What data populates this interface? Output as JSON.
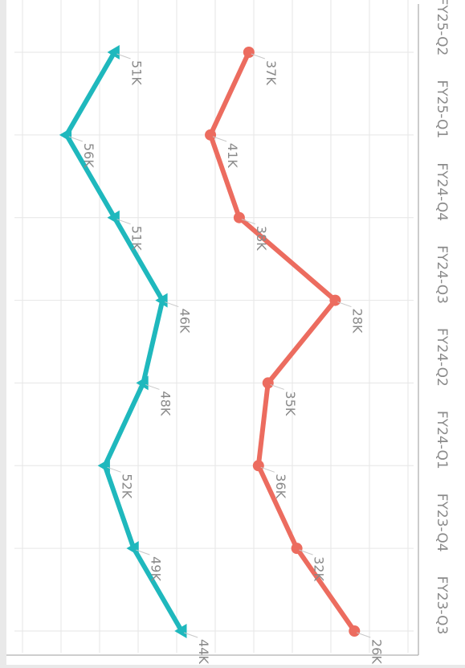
{
  "chart_data": {
    "type": "line",
    "orientation": "rotated-90-clockwise",
    "categories": [
      "FY23-Q3",
      "FY23-Q4",
      "FY24-Q1",
      "FY24-Q2",
      "FY24-Q3",
      "FY24-Q4",
      "FY25-Q1",
      "FY25-Q2"
    ],
    "series": [
      {
        "color": "#1fb8bd",
        "marker": "triangle",
        "values": [
          44,
          49,
          52,
          48,
          46,
          51,
          56,
          51
        ],
        "labels": [
          "44K",
          "49K",
          "52K",
          "48K",
          "46K",
          "51K",
          "56K",
          "51K"
        ]
      },
      {
        "color": "#ec6c5f",
        "marker": "circle",
        "values": [
          26,
          32,
          36,
          35,
          28,
          38,
          41,
          37
        ],
        "labels": [
          "26K",
          "32K",
          "36K",
          "35K",
          "28K",
          "38K",
          "41K",
          "37K"
        ]
      }
    ],
    "ylim": [
      20,
      60
    ],
    "grid": true,
    "label_color": "#8a8a8a",
    "grid_color": "#e6e6e6",
    "axis_color": "#b0b0b0"
  }
}
